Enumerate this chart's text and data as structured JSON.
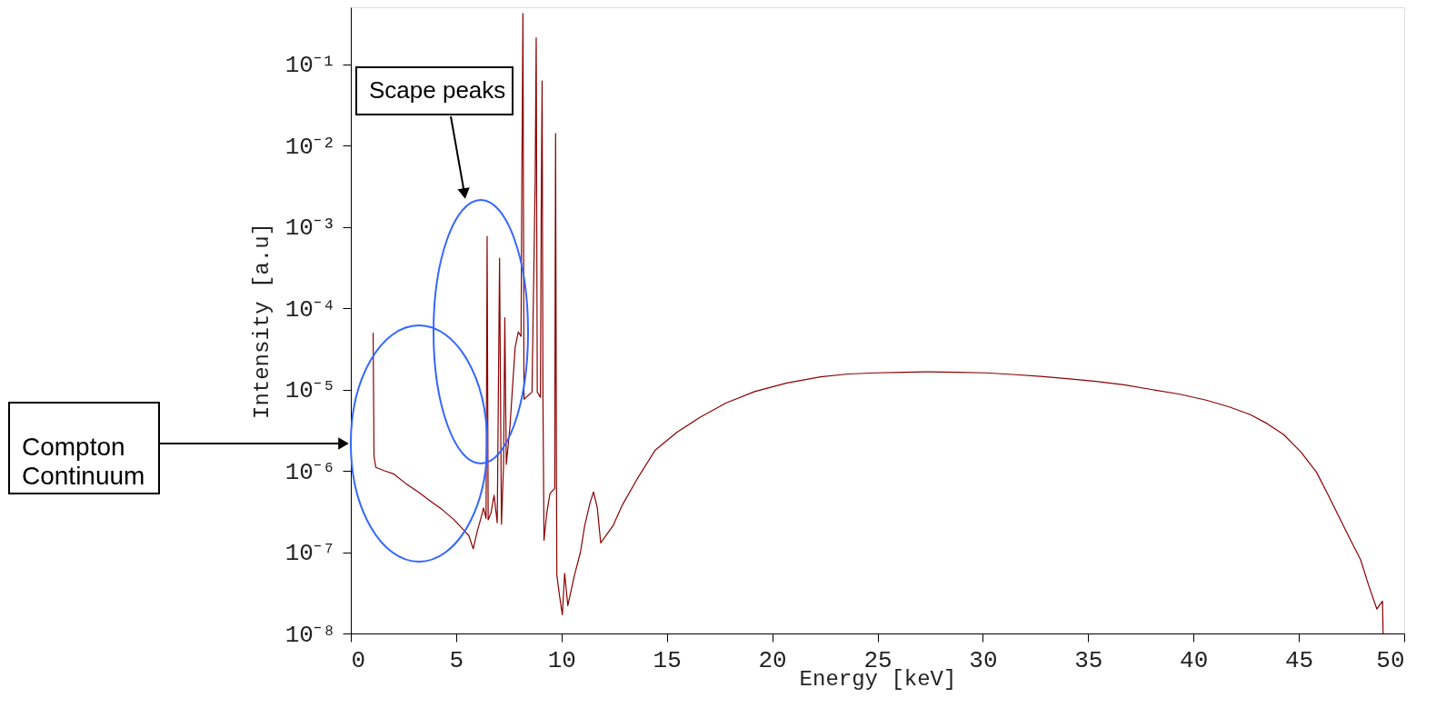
{
  "chart_data": {
    "type": "line",
    "xlabel": "Energy [keV]",
    "ylabel": "Intensity [a.u]",
    "log": true,
    "grid": false,
    "marker": "none",
    "line_style": "solid",
    "xlim": [
      0,
      50
    ],
    "xticks": [
      0,
      5,
      10,
      15,
      20,
      25,
      30,
      35,
      40,
      45,
      50
    ],
    "ylim": [
      1e-08,
      0.5
    ],
    "yticks": [
      {
        "value": 1e-08,
        "label": "10⁻⁸"
      },
      {
        "value": 1e-07,
        "label": "10⁻⁷"
      },
      {
        "value": 1e-06,
        "label": "10⁻⁶"
      },
      {
        "value": 1e-05,
        "label": "10⁻⁵"
      },
      {
        "value": 0.0001,
        "label": "10⁻⁴"
      },
      {
        "value": 0.001,
        "label": "10⁻³"
      },
      {
        "value": 0.01,
        "label": "10⁻²"
      },
      {
        "value": 0.1,
        "label": "10⁻¹"
      }
    ],
    "annotations": [
      "Scape peaks",
      "Compton\nContinuum"
    ],
    "series": [
      {
        "color": "#8b0000",
        "x": [
          1.06,
          1.1,
          1.19,
          1.6,
          2.05,
          2.6,
          3.2,
          3.8,
          4.36,
          4.9,
          5.33,
          5.6,
          5.81,
          6.0,
          6.19,
          6.3,
          6.42,
          6.47,
          6.52,
          6.65,
          6.8,
          6.95,
          7.06,
          7.15,
          7.25,
          7.31,
          7.38,
          7.55,
          7.8,
          7.95,
          8.08,
          8.12,
          8.17,
          8.22,
          8.6,
          8.75,
          8.8,
          8.85,
          9.0,
          9.04,
          9.08,
          9.12,
          9.17,
          9.3,
          9.45,
          9.6,
          9.68,
          9.7,
          9.72,
          9.76,
          9.78,
          9.9,
          10.04,
          10.15,
          10.3,
          10.6,
          10.9,
          11.1,
          11.35,
          11.52,
          11.7,
          11.86,
          12.44,
          12.89,
          13.6,
          14.45,
          15.5,
          16.55,
          17.8,
          19.16,
          20.7,
          22.3,
          23.6,
          24.92,
          26.2,
          27.5,
          28.8,
          30.15,
          31.4,
          32.75,
          34.0,
          35.37,
          36.7,
          37.99,
          39.3,
          40.6,
          41.7,
          42.7,
          43.5,
          44.27,
          45.1,
          45.84,
          46.4,
          46.88,
          47.4,
          47.93,
          48.3,
          48.7,
          48.97,
          49.0
        ],
        "values": [
          5e-05,
          1.5e-06,
          1.1e-06,
          1e-06,
          9.1e-07,
          7e-07,
          5.5e-07,
          4.2e-07,
          3.3e-07,
          2.5e-07,
          1.9e-07,
          1.6e-07,
          1.1e-07,
          1.8e-07,
          2.7e-07,
          3.5e-07,
          2.6e-07,
          0.00076,
          2.5e-07,
          3e-07,
          5e-07,
          2.3e-07,
          0.00041,
          2.2e-07,
          1.2e-06,
          7.6e-05,
          1.2e-06,
          3.4e-06,
          3.3e-05,
          5.1e-05,
          4.5e-05,
          0.0045,
          0.42,
          7.6e-06,
          9.3e-06,
          0.0035,
          0.21,
          9.3e-06,
          8e-06,
          0.002,
          0.062,
          8e-06,
          1.4e-07,
          3e-07,
          5.2e-07,
          5.8e-07,
          6e-07,
          0.0002,
          0.014,
          1e-06,
          5.2e-08,
          3e-08,
          1.7e-08,
          5.5e-08,
          2.2e-08,
          5e-08,
          1e-07,
          2.1e-07,
          4e-07,
          5.5e-07,
          3.5e-07,
          1.3e-07,
          2.1e-07,
          3.8e-07,
          8e-07,
          1.8e-06,
          3e-06,
          4.5e-06,
          6.8e-06,
          9.4e-06,
          1.2e-05,
          1.43e-05,
          1.55e-05,
          1.6e-05,
          1.63e-05,
          1.65e-05,
          1.63e-05,
          1.6e-05,
          1.53e-05,
          1.45e-05,
          1.36e-05,
          1.26e-05,
          1.14e-05,
          1e-05,
          8.8e-06,
          7.4e-06,
          6.1e-06,
          4.9e-06,
          3.8e-06,
          2.8e-06,
          1.7e-06,
          9.6e-07,
          5e-07,
          2.8e-07,
          1.5e-07,
          8.1e-08,
          4e-08,
          2e-08,
          2.5e-08,
          1e-08
        ]
      }
    ]
  }
}
